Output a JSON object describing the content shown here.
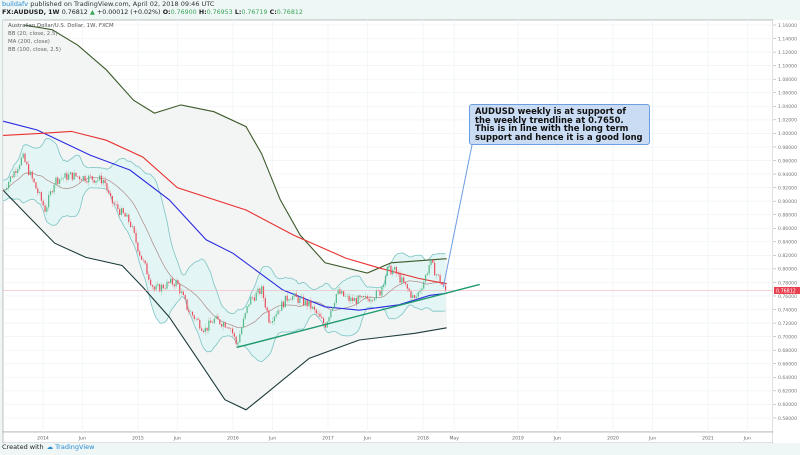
{
  "header": {
    "user": "buildafv",
    "published": "published on TradingView.com, April 02, 2018 09:46 UTC",
    "symbol": "FX:AUDUSD, 1W",
    "last": "0.76812",
    "change": "+0.00012 (+0.02%)",
    "open_label": "O:",
    "open": "0.76900",
    "high_label": "H:",
    "high": "0.76953",
    "low_label": "L:",
    "low": "0.76719",
    "close_label": "C:",
    "close": "0.76812"
  },
  "legend": {
    "title": "Australian Dollar/U.S. Dollar, 1W, FXCM",
    "items": [
      "BB (20, close, 2.5)",
      "MA (200, close)",
      "BB (100, close, 2.5)"
    ]
  },
  "annotation": "AUDUSD weekly is at support of the weekly trendline at 0.7650. This is in line with the long term support and hence it is a good long",
  "footer": {
    "created_with": "Created with",
    "brand": "TradingView"
  },
  "colors": {
    "up": "#53b987",
    "down": "#eb4d5c",
    "ma200": "#e8312f",
    "bb100_basis": "#2a2ae0",
    "bb100_upper": "#3d5a2a",
    "bb100_lower": "#1d3a3a",
    "bb20": "#7cc4c4",
    "bb20_basis": "#b08a8a",
    "trendline": "#1e9a6e",
    "price_marker": "#e8404f"
  },
  "chart_data": {
    "type": "candlestick",
    "ylim": [
      0.58,
      1.16
    ],
    "y_ticks": [
      "1.16000",
      "1.14000",
      "1.12000",
      "1.10000",
      "1.08000",
      "1.06000",
      "1.04000",
      "1.02000",
      "1.00000",
      "0.98000",
      "0.96000",
      "0.94000",
      "0.92000",
      "0.90000",
      "0.88000",
      "0.86000",
      "0.84000",
      "0.82000",
      "0.80000",
      "0.78000",
      "0.76000",
      "0.74000",
      "0.72000",
      "0.70000",
      "0.68000",
      "0.66000",
      "0.64000",
      "0.62000",
      "0.60000",
      "0.58000"
    ],
    "x_ticks": [
      {
        "label": "2014",
        "date": "2014-01-01"
      },
      {
        "label": "Jun",
        "date": "2014-06-01"
      },
      {
        "label": "2015",
        "date": "2015-01-01"
      },
      {
        "label": "Jun",
        "date": "2015-06-01"
      },
      {
        "label": "2016",
        "date": "2016-01-01"
      },
      {
        "label": "Jun",
        "date": "2016-06-01"
      },
      {
        "label": "2017",
        "date": "2017-01-01"
      },
      {
        "label": "Jun",
        "date": "2017-06-01"
      },
      {
        "label": "2018",
        "date": "2018-01-01"
      },
      {
        "label": "May",
        "date": "2018-05-01"
      },
      {
        "label": "2019",
        "date": "2019-01-01"
      },
      {
        "label": "Jun",
        "date": "2019-06-01"
      },
      {
        "label": "2020",
        "date": "2020-01-01"
      },
      {
        "label": "Jun",
        "date": "2020-06-01"
      },
      {
        "label": "2021",
        "date": "2021-01-01"
      },
      {
        "label": "Jun",
        "date": "2021-06-01"
      }
    ],
    "last_price": "0.76812",
    "close_path": [
      [
        "2013-08-01",
        0.916
      ],
      [
        "2013-10-15",
        0.965
      ],
      [
        "2014-01-10",
        0.887
      ],
      [
        "2014-02-15",
        0.931
      ],
      [
        "2014-04-15",
        0.938
      ],
      [
        "2014-08-25",
        0.931
      ],
      [
        "2014-09-15",
        0.902
      ],
      [
        "2014-12-01",
        0.869
      ],
      [
        "2015-01-10",
        0.82
      ],
      [
        "2015-03-05",
        0.769
      ],
      [
        "2015-05-05",
        0.779
      ],
      [
        "2015-05-30",
        0.78
      ],
      [
        "2015-07-12",
        0.74
      ],
      [
        "2015-09-15",
        0.71
      ],
      [
        "2015-10-20",
        0.725
      ],
      [
        "2015-12-20",
        0.717
      ],
      [
        "2016-01-15",
        0.688
      ],
      [
        "2016-03-05",
        0.754
      ],
      [
        "2016-04-20",
        0.769
      ],
      [
        "2016-05-20",
        0.724
      ],
      [
        "2016-08-05",
        0.761
      ],
      [
        "2016-10-20",
        0.747
      ],
      [
        "2016-12-20",
        0.717
      ],
      [
        "2017-02-05",
        0.766
      ],
      [
        "2017-03-25",
        0.754
      ],
      [
        "2017-05-20",
        0.754
      ],
      [
        "2017-07-20",
        0.766
      ],
      [
        "2017-08-15",
        0.798
      ],
      [
        "2017-09-12",
        0.798
      ],
      [
        "2017-10-22",
        0.776
      ],
      [
        "2017-12-01",
        0.754
      ],
      [
        "2018-01-08",
        0.786
      ],
      [
        "2018-01-28",
        0.81
      ],
      [
        "2018-03-05",
        0.784
      ],
      [
        "2018-03-25",
        0.769
      ],
      [
        "2018-04-02",
        0.768
      ]
    ],
    "ma200": [
      [
        "2013-08-01",
        0.997
      ],
      [
        "2013-12-20",
        1.0
      ],
      [
        "2014-04-20",
        1.003
      ],
      [
        "2014-09-01",
        0.99
      ],
      [
        "2015-01-20",
        0.965
      ],
      [
        "2015-06-01",
        0.92
      ],
      [
        "2016-02-20",
        0.887
      ],
      [
        "2016-08-20",
        0.85
      ],
      [
        "2017-03-10",
        0.816
      ],
      [
        "2017-07-20",
        0.801
      ],
      [
        "2017-12-15",
        0.786
      ],
      [
        "2018-04-02",
        0.778
      ]
    ],
    "bb100_basis": [
      [
        "2013-08-01",
        1.018
      ],
      [
        "2013-12-10",
        1.005
      ],
      [
        "2014-07-01",
        0.968
      ],
      [
        "2014-12-01",
        0.946
      ],
      [
        "2015-05-01",
        0.902
      ],
      [
        "2015-09-20",
        0.843
      ],
      [
        "2016-01-01",
        0.823
      ],
      [
        "2016-07-10",
        0.769
      ],
      [
        "2016-12-20",
        0.744
      ],
      [
        "2017-05-01",
        0.739
      ],
      [
        "2017-10-01",
        0.747
      ],
      [
        "2018-01-28",
        0.761
      ],
      [
        "2018-04-02",
        0.764
      ]
    ],
    "bb100_upper": [
      [
        "2013-10-20",
        1.16
      ],
      [
        "2014-02-05",
        1.153
      ],
      [
        "2014-05-15",
        1.13
      ],
      [
        "2014-09-01",
        1.094
      ],
      [
        "2014-12-15",
        1.049
      ],
      [
        "2015-03-05",
        1.03
      ],
      [
        "2015-06-15",
        1.042
      ],
      [
        "2015-10-20",
        1.032
      ],
      [
        "2016-02-20",
        1.01
      ],
      [
        "2016-04-20",
        0.97
      ],
      [
        "2016-07-01",
        0.902
      ],
      [
        "2016-09-15",
        0.85
      ],
      [
        "2016-12-20",
        0.809
      ],
      [
        "2017-06-01",
        0.794
      ],
      [
        "2017-09-01",
        0.809
      ],
      [
        "2018-04-02",
        0.815
      ]
    ],
    "bb100_lower": [
      [
        "2013-08-01",
        0.916
      ],
      [
        "2013-11-10",
        0.876
      ],
      [
        "2014-02-15",
        0.838
      ],
      [
        "2014-06-15",
        0.817
      ],
      [
        "2014-11-01",
        0.805
      ],
      [
        "2015-01-20",
        0.773
      ],
      [
        "2015-05-01",
        0.729
      ],
      [
        "2015-08-20",
        0.666
      ],
      [
        "2015-12-01",
        0.607
      ],
      [
        "2016-02-20",
        0.592
      ],
      [
        "2016-05-01",
        0.614
      ],
      [
        "2016-10-20",
        0.668
      ],
      [
        "2017-05-01",
        0.695
      ],
      [
        "2017-12-01",
        0.705
      ],
      [
        "2018-04-02",
        0.713
      ]
    ],
    "trendline": [
      [
        "2016-01-15",
        0.684
      ],
      [
        "2018-08-07",
        0.777
      ]
    ],
    "pointer": [
      [
        "2018-01-28",
        0.97
      ],
      [
        "2018-03-20",
        0.773
      ]
    ]
  }
}
